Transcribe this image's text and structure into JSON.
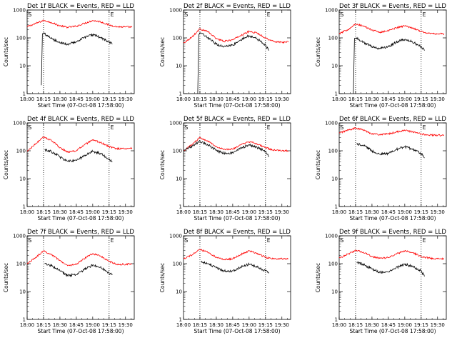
{
  "figure": {
    "background": "#ffffff",
    "axis_color": "#000000"
  },
  "shared": {
    "xlabel": "Start Time (07-Oct-08 17:58:00)",
    "ylabel": "Counts/sec",
    "x_tick_labels": [
      "18:00",
      "18:15",
      "18:30",
      "18:45",
      "19:00",
      "19:15",
      "19:30"
    ],
    "y_tick_labels": [
      "1",
      "10",
      "100",
      "1000"
    ],
    "marker_S": "S",
    "marker_E": "E"
  },
  "chart_data": [
    {
      "type": "line",
      "title": "Det 1f BLACK = Events, RED = LLD",
      "xlim": [
        "18:00",
        "19:38"
      ],
      "ylim": [
        1,
        1000
      ],
      "yscale": "log",
      "grid": false,
      "vlines": [
        "18:15",
        "19:15"
      ],
      "series": [
        {
          "color": "#ff0000",
          "x": [
            "18:00",
            "18:08",
            "18:15",
            "18:22",
            "18:30",
            "18:37",
            "18:45",
            "18:52",
            "19:00",
            "19:07",
            "19:15",
            "19:22",
            "19:30",
            "19:36"
          ],
          "values": [
            250,
            330,
            420,
            360,
            270,
            240,
            260,
            330,
            420,
            380,
            290,
            250,
            245,
            245
          ]
        },
        {
          "color": "#000000",
          "x": [
            "18:13",
            "18:14",
            "18:16",
            "18:22",
            "18:30",
            "18:37",
            "18:45",
            "18:52",
            "19:00",
            "19:07",
            "19:15",
            "19:18"
          ],
          "values": [
            2,
            140,
            140,
            95,
            65,
            60,
            70,
            100,
            130,
            105,
            70,
            60
          ]
        }
      ]
    },
    {
      "type": "line",
      "title": "Det 2f BLACK = Events, RED = LLD",
      "xlim": [
        "18:00",
        "19:38"
      ],
      "ylim": [
        1,
        1000
      ],
      "yscale": "log",
      "grid": false,
      "vlines": [
        "18:15",
        "19:15"
      ],
      "series": [
        {
          "color": "#ff0000",
          "x": [
            "18:00",
            "18:08",
            "18:15",
            "18:22",
            "18:30",
            "18:37",
            "18:45",
            "18:52",
            "19:00",
            "19:07",
            "19:15",
            "19:22",
            "19:30",
            "19:36"
          ],
          "values": [
            65,
            110,
            210,
            170,
            95,
            75,
            85,
            120,
            170,
            150,
            100,
            75,
            70,
            70
          ]
        },
        {
          "color": "#000000",
          "x": [
            "18:13",
            "18:14",
            "18:16",
            "18:22",
            "18:30",
            "18:37",
            "18:45",
            "18:52",
            "19:00",
            "19:07",
            "19:15",
            "19:18"
          ],
          "values": [
            1,
            130,
            150,
            100,
            60,
            48,
            55,
            85,
            120,
            95,
            55,
            35
          ]
        }
      ]
    },
    {
      "type": "line",
      "title": "Det 3f BLACK = Events, RED = LLD",
      "xlim": [
        "18:00",
        "19:38"
      ],
      "ylim": [
        1,
        1000
      ],
      "yscale": "log",
      "grid": false,
      "vlines": [
        "18:15",
        "19:15"
      ],
      "series": [
        {
          "color": "#ff0000",
          "x": [
            "18:00",
            "18:08",
            "18:15",
            "18:22",
            "18:30",
            "18:37",
            "18:45",
            "18:52",
            "19:00",
            "19:07",
            "19:15",
            "19:22",
            "19:30",
            "19:36"
          ],
          "values": [
            140,
            200,
            310,
            270,
            190,
            160,
            180,
            230,
            270,
            230,
            170,
            145,
            140,
            140
          ]
        },
        {
          "color": "#000000",
          "x": [
            "18:13",
            "18:14",
            "18:16",
            "18:22",
            "18:30",
            "18:37",
            "18:45",
            "18:52",
            "19:00",
            "19:07",
            "19:15",
            "19:18"
          ],
          "values": [
            1,
            95,
            100,
            70,
            48,
            42,
            48,
            70,
            88,
            72,
            48,
            35
          ]
        }
      ]
    },
    {
      "type": "line",
      "title": "Det 4f BLACK = Events, RED = LLD",
      "xlim": [
        "18:00",
        "19:38"
      ],
      "ylim": [
        1,
        1000
      ],
      "yscale": "log",
      "grid": false,
      "vlines": [
        "18:15",
        "19:15"
      ],
      "series": [
        {
          "color": "#ff0000",
          "x": [
            "18:00",
            "18:08",
            "18:15",
            "18:22",
            "18:30",
            "18:37",
            "18:45",
            "18:52",
            "19:00",
            "19:07",
            "19:15",
            "19:22",
            "19:30",
            "19:36"
          ],
          "values": [
            95,
            180,
            310,
            240,
            130,
            90,
            100,
            160,
            240,
            200,
            140,
            120,
            120,
            125
          ]
        },
        {
          "color": "#000000",
          "x": [
            "18:16",
            "18:22",
            "18:30",
            "18:37",
            "18:45",
            "18:52",
            "19:00",
            "19:07",
            "19:15",
            "19:18"
          ],
          "values": [
            110,
            95,
            60,
            42,
            45,
            65,
            95,
            80,
            50,
            40
          ]
        }
      ]
    },
    {
      "type": "line",
      "title": "Det 5f BLACK = Events, RED = LLD",
      "xlim": [
        "18:00",
        "19:38"
      ],
      "ylim": [
        1,
        1000
      ],
      "yscale": "log",
      "grid": false,
      "vlines": [
        "18:15",
        "19:15"
      ],
      "series": [
        {
          "color": "#ff0000",
          "x": [
            "18:00",
            "18:08",
            "18:15",
            "18:22",
            "18:30",
            "18:37",
            "18:45",
            "18:52",
            "19:00",
            "19:07",
            "19:15",
            "19:22",
            "19:30",
            "19:36"
          ],
          "values": [
            100,
            170,
            300,
            230,
            140,
            110,
            115,
            160,
            210,
            180,
            130,
            105,
            100,
            100
          ]
        },
        {
          "color": "#000000",
          "x": [
            "18:00",
            "18:08",
            "18:15",
            "18:22",
            "18:30",
            "18:37",
            "18:45",
            "18:52",
            "19:00",
            "19:07",
            "19:15",
            "19:18"
          ],
          "values": [
            100,
            150,
            220,
            170,
            105,
            80,
            85,
            120,
            165,
            135,
            95,
            60
          ]
        }
      ]
    },
    {
      "type": "line",
      "title": "Det 6f BLACK = Events, RED = LLD",
      "xlim": [
        "18:00",
        "19:38"
      ],
      "ylim": [
        1,
        1000
      ],
      "yscale": "log",
      "grid": false,
      "vlines": [
        "18:15",
        "19:15"
      ],
      "series": [
        {
          "color": "#ff0000",
          "x": [
            "18:00",
            "18:08",
            "18:15",
            "18:22",
            "18:30",
            "18:37",
            "18:45",
            "18:52",
            "19:00",
            "19:07",
            "19:15",
            "19:22",
            "19:30",
            "19:36"
          ],
          "values": [
            430,
            550,
            650,
            560,
            410,
            380,
            400,
            470,
            540,
            480,
            400,
            370,
            360,
            360
          ]
        },
        {
          "color": "#000000",
          "x": [
            "18:16",
            "18:22",
            "18:30",
            "18:37",
            "18:45",
            "18:52",
            "19:00",
            "19:07",
            "19:15",
            "19:18"
          ],
          "values": [
            180,
            160,
            100,
            75,
            80,
            110,
            140,
            115,
            80,
            55
          ]
        }
      ]
    },
    {
      "type": "line",
      "title": "Det 7f BLACK = Events, RED = LLD",
      "xlim": [
        "18:00",
        "19:38"
      ],
      "ylim": [
        1,
        1000
      ],
      "yscale": "log",
      "grid": false,
      "vlines": [
        "18:15",
        "19:15"
      ],
      "series": [
        {
          "color": "#ff0000",
          "x": [
            "18:00",
            "18:08",
            "18:15",
            "18:22",
            "18:30",
            "18:37",
            "18:45",
            "18:52",
            "19:00",
            "19:07",
            "19:15",
            "19:22",
            "19:30",
            "19:36"
          ],
          "values": [
            100,
            170,
            280,
            220,
            130,
            85,
            95,
            150,
            230,
            190,
            120,
            95,
            95,
            100
          ]
        },
        {
          "color": "#000000",
          "x": [
            "18:16",
            "18:22",
            "18:30",
            "18:37",
            "18:45",
            "18:52",
            "19:00",
            "19:07",
            "19:15",
            "19:18"
          ],
          "values": [
            100,
            85,
            55,
            38,
            40,
            60,
            90,
            75,
            45,
            40
          ]
        }
      ]
    },
    {
      "type": "line",
      "title": "Det 8f BLACK = Events, RED = LLD",
      "xlim": [
        "18:00",
        "19:38"
      ],
      "ylim": [
        1,
        1000
      ],
      "yscale": "log",
      "grid": false,
      "vlines": [
        "18:15",
        "19:15"
      ],
      "series": [
        {
          "color": "#ff0000",
          "x": [
            "18:00",
            "18:08",
            "18:15",
            "18:22",
            "18:30",
            "18:37",
            "18:45",
            "18:52",
            "19:00",
            "19:07",
            "19:15",
            "19:22",
            "19:30",
            "19:36"
          ],
          "values": [
            150,
            210,
            320,
            260,
            170,
            140,
            150,
            210,
            290,
            240,
            170,
            150,
            150,
            150
          ]
        },
        {
          "color": "#000000",
          "x": [
            "18:16",
            "18:22",
            "18:30",
            "18:37",
            "18:45",
            "18:52",
            "19:00",
            "19:07",
            "19:15",
            "19:18"
          ],
          "values": [
            120,
            100,
            70,
            55,
            55,
            75,
            95,
            80,
            55,
            45
          ]
        }
      ]
    },
    {
      "type": "line",
      "title": "Det 9f BLACK = Events, RED = LLD",
      "xlim": [
        "18:00",
        "19:38"
      ],
      "ylim": [
        1,
        1000
      ],
      "yscale": "log",
      "grid": false,
      "vlines": [
        "18:15",
        "19:15"
      ],
      "series": [
        {
          "color": "#ff0000",
          "x": [
            "18:00",
            "18:08",
            "18:15",
            "18:22",
            "18:30",
            "18:37",
            "18:45",
            "18:52",
            "19:00",
            "19:07",
            "19:15",
            "19:22",
            "19:30",
            "19:36"
          ],
          "values": [
            160,
            220,
            300,
            260,
            180,
            155,
            165,
            220,
            290,
            250,
            180,
            160,
            150,
            150
          ]
        },
        {
          "color": "#000000",
          "x": [
            "18:16",
            "18:22",
            "18:30",
            "18:37",
            "18:45",
            "18:52",
            "19:00",
            "19:07",
            "19:15",
            "19:18"
          ],
          "values": [
            110,
            95,
            65,
            50,
            50,
            70,
            95,
            80,
            55,
            35
          ]
        }
      ]
    }
  ]
}
